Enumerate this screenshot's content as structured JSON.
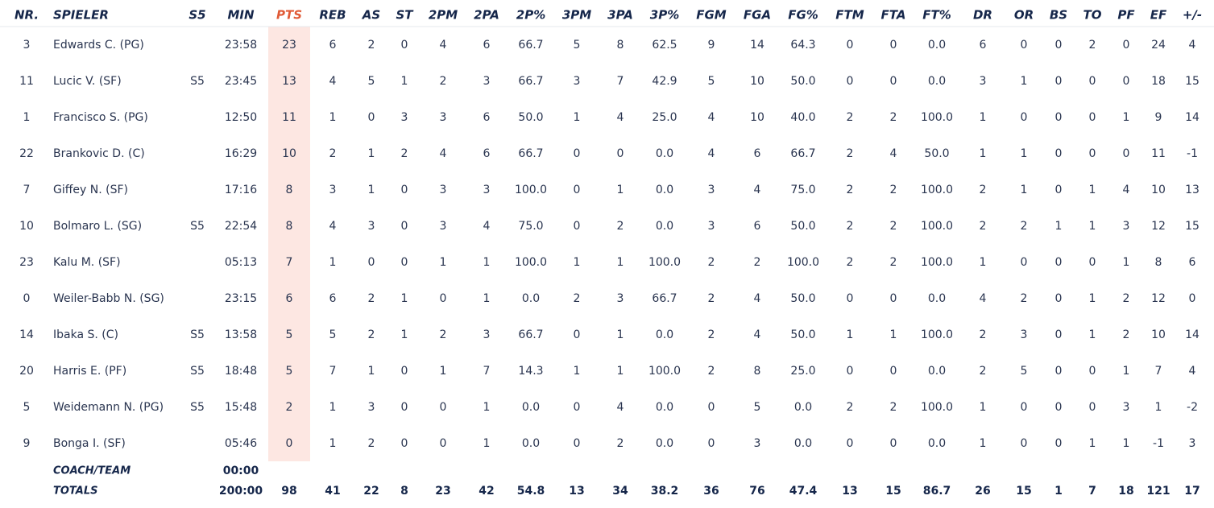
{
  "table": {
    "columns": [
      "NR.",
      "SPIELER",
      "S5",
      "MIN",
      "PTS",
      "REB",
      "AS",
      "ST",
      "2PM",
      "2PA",
      "2P%",
      "3PM",
      "3PA",
      "3P%",
      "FGM",
      "FGA",
      "FG%",
      "FTM",
      "FTA",
      "FT%",
      "DR",
      "OR",
      "BS",
      "TO",
      "PF",
      "EF",
      "+/-"
    ],
    "rows": [
      [
        "3",
        "Edwards C. (PG)",
        null,
        "23:58",
        "23",
        "6",
        "2",
        "0",
        "4",
        "6",
        "66.7",
        "5",
        "8",
        "62.5",
        "9",
        "14",
        "64.3",
        "0",
        "0",
        "0.0",
        "6",
        "0",
        "0",
        "2",
        "0",
        "24",
        "4"
      ],
      [
        "11",
        "Lucic V. (SF)",
        "S5",
        "23:45",
        "13",
        "4",
        "5",
        "1",
        "2",
        "3",
        "66.7",
        "3",
        "7",
        "42.9",
        "5",
        "10",
        "50.0",
        "0",
        "0",
        "0.0",
        "3",
        "1",
        "0",
        "0",
        "0",
        "18",
        "15"
      ],
      [
        "1",
        "Francisco S. (PG)",
        null,
        "12:50",
        "11",
        "1",
        "0",
        "3",
        "3",
        "6",
        "50.0",
        "1",
        "4",
        "25.0",
        "4",
        "10",
        "40.0",
        "2",
        "2",
        "100.0",
        "1",
        "0",
        "0",
        "0",
        "1",
        "9",
        "14"
      ],
      [
        "22",
        "Brankovic D. (C)",
        null,
        "16:29",
        "10",
        "2",
        "1",
        "2",
        "4",
        "6",
        "66.7",
        "0",
        "0",
        "0.0",
        "4",
        "6",
        "66.7",
        "2",
        "4",
        "50.0",
        "1",
        "1",
        "0",
        "0",
        "0",
        "11",
        "-1"
      ],
      [
        "7",
        "Giffey N. (SF)",
        null,
        "17:16",
        "8",
        "3",
        "1",
        "0",
        "3",
        "3",
        "100.0",
        "0",
        "1",
        "0.0",
        "3",
        "4",
        "75.0",
        "2",
        "2",
        "100.0",
        "2",
        "1",
        "0",
        "1",
        "4",
        "10",
        "13"
      ],
      [
        "10",
        "Bolmaro L. (SG)",
        "S5",
        "22:54",
        "8",
        "4",
        "3",
        "0",
        "3",
        "4",
        "75.0",
        "0",
        "2",
        "0.0",
        "3",
        "6",
        "50.0",
        "2",
        "2",
        "100.0",
        "2",
        "2",
        "1",
        "1",
        "3",
        "12",
        "15"
      ],
      [
        "23",
        "Kalu M. (SF)",
        null,
        "05:13",
        "7",
        "1",
        "0",
        "0",
        "1",
        "1",
        "100.0",
        "1",
        "1",
        "100.0",
        "2",
        "2",
        "100.0",
        "2",
        "2",
        "100.0",
        "1",
        "0",
        "0",
        "0",
        "1",
        "8",
        "6"
      ],
      [
        "0",
        "Weiler-Babb N. (SG)",
        null,
        "23:15",
        "6",
        "6",
        "2",
        "1",
        "0",
        "1",
        "0.0",
        "2",
        "3",
        "66.7",
        "2",
        "4",
        "50.0",
        "0",
        "0",
        "0.0",
        "4",
        "2",
        "0",
        "1",
        "2",
        "12",
        "0"
      ],
      [
        "14",
        "Ibaka S. (C)",
        "S5",
        "13:58",
        "5",
        "5",
        "2",
        "1",
        "2",
        "3",
        "66.7",
        "0",
        "1",
        "0.0",
        "2",
        "4",
        "50.0",
        "1",
        "1",
        "100.0",
        "2",
        "3",
        "0",
        "1",
        "2",
        "10",
        "14"
      ],
      [
        "20",
        "Harris E. (PF)",
        "S5",
        "18:48",
        "5",
        "7",
        "1",
        "0",
        "1",
        "7",
        "14.3",
        "1",
        "1",
        "100.0",
        "2",
        "8",
        "25.0",
        "0",
        "0",
        "0.0",
        "2",
        "5",
        "0",
        "0",
        "1",
        "7",
        "4"
      ],
      [
        "5",
        "Weidemann N. (PG)",
        "S5",
        "15:48",
        "2",
        "1",
        "3",
        "0",
        "0",
        "1",
        "0.0",
        "0",
        "4",
        "0.0",
        "0",
        "5",
        "0.0",
        "2",
        "2",
        "100.0",
        "1",
        "0",
        "0",
        "0",
        "3",
        "1",
        "-2"
      ],
      [
        "9",
        "Bonga I. (SF)",
        null,
        "05:46",
        "0",
        "1",
        "2",
        "0",
        "0",
        "1",
        "0.0",
        "0",
        "2",
        "0.0",
        "0",
        "3",
        "0.0",
        "0",
        "0",
        "0.0",
        "1",
        "0",
        "0",
        "1",
        "1",
        "-1",
        "3"
      ]
    ],
    "coach_row": [
      null,
      "COACH/TEAM",
      null,
      "00:00",
      null,
      null,
      null,
      null,
      null,
      null,
      null,
      null,
      null,
      null,
      null,
      null,
      null,
      null,
      null,
      null,
      null,
      null,
      null,
      null,
      null,
      null,
      null
    ],
    "totals_row": [
      null,
      "TOTALS",
      null,
      "200:00",
      "98",
      "41",
      "22",
      "8",
      "23",
      "42",
      "54.8",
      "13",
      "34",
      "38.2",
      "36",
      "76",
      "47.4",
      "13",
      "15",
      "86.7",
      "26",
      "15",
      "1",
      "7",
      "18",
      "121",
      "17"
    ]
  }
}
